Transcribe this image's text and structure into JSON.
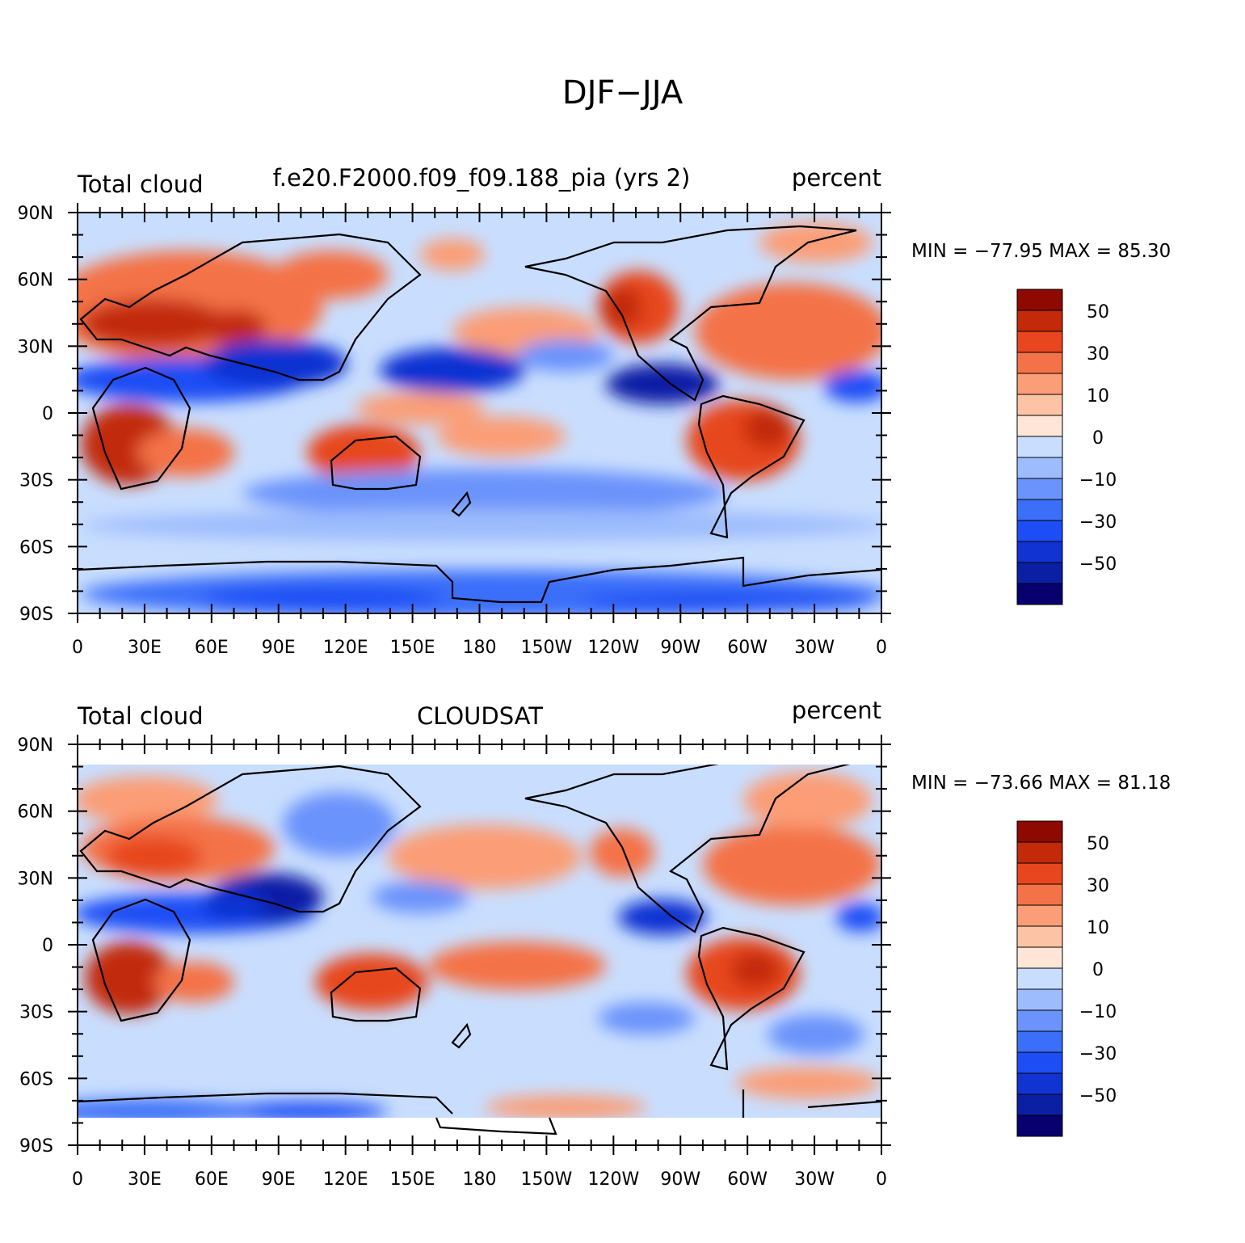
{
  "figure": {
    "title": "DJF−JJA"
  },
  "palette": [
    "#08006e",
    "#0b1fa5",
    "#1033d2",
    "#1c4df5",
    "#3b6ef9",
    "#6a93fb",
    "#9dbcfd",
    "#c9defe",
    "#fde6d7",
    "#fdc3a5",
    "#fb9d76",
    "#f47247",
    "#e7461f",
    "#c22a0a",
    "#8e0900"
  ],
  "panels": [
    {
      "id": "top",
      "title_left": "Total cloud",
      "title_center": "f.e20.F2000.f09_f09.188_pia (yrs 2)",
      "title_right": "percent",
      "stats": "MIN = −77.95 MAX =   85.30",
      "colorbar_labels": [
        "50",
        "30",
        "10",
        "0",
        "−10",
        "−30",
        "−50"
      ],
      "lat_labels": [
        "90N",
        "60N",
        "30N",
        "0",
        "30S",
        "60S",
        "90S"
      ],
      "lon_labels": [
        "0",
        "30E",
        "60E",
        "90E",
        "120E",
        "150E",
        "180",
        "150W",
        "120W",
        "90W",
        "60W",
        "30W",
        "0"
      ]
    },
    {
      "id": "bottom",
      "title_left": "Total cloud",
      "title_center": "CLOUDSAT",
      "title_right": "percent",
      "stats": "MIN = −73.66 MAX =   81.18",
      "colorbar_labels": [
        "50",
        "30",
        "10",
        "0",
        "−10",
        "−30",
        "−50"
      ],
      "lat_labels": [
        "90N",
        "60N",
        "30N",
        "0",
        "30S",
        "60S",
        "90S"
      ],
      "lon_labels": [
        "0",
        "30E",
        "60E",
        "90E",
        "120E",
        "150E",
        "180",
        "150W",
        "120W",
        "90W",
        "60W",
        "30W",
        "0"
      ]
    }
  ]
}
